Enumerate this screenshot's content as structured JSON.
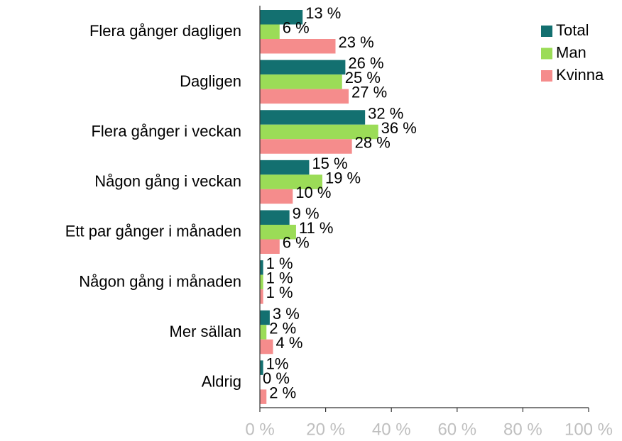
{
  "chart_data": {
    "type": "barh",
    "categories": [
      "Flera gånger dagligen",
      "Dagligen",
      "Flera gånger i veckan",
      "Någon gång i veckan",
      "Ett par gånger i månaden",
      "Någon gång i månaden",
      "Mer sällan",
      "Aldrig"
    ],
    "series": [
      {
        "name": "Total",
        "color": "#137070",
        "values": [
          13,
          26,
          32,
          15,
          9,
          1,
          3,
          1
        ],
        "value_labels": [
          "13 %",
          "26 %",
          "32 %",
          "15 %",
          "9 %",
          "1 %",
          "3 %",
          "1%"
        ]
      },
      {
        "name": "Man",
        "color": "#9bdc57",
        "values": [
          6,
          25,
          36,
          19,
          11,
          1,
          2,
          0
        ],
        "value_labels": [
          "6 %",
          "25 %",
          "36 %",
          "19 %",
          "11 %",
          "1 %",
          "2 %",
          "0 %"
        ]
      },
      {
        "name": "Kvinna",
        "color": "#f58c8c",
        "values": [
          23,
          27,
          28,
          10,
          6,
          1,
          4,
          2
        ],
        "value_labels": [
          "23 %",
          "27 %",
          "28 %",
          "10 %",
          "6 %",
          "1 %",
          "4 %",
          "2 %"
        ]
      }
    ],
    "xlim": [
      0,
      100
    ],
    "xticks": [
      {
        "value": 0,
        "label": "0 %"
      },
      {
        "value": 20,
        "label": "20 %"
      },
      {
        "value": 40,
        "label": "40 %"
      },
      {
        "value": 60,
        "label": "60 %"
      },
      {
        "value": 80,
        "label": "80 %"
      },
      {
        "value": 100,
        "label": "100 %"
      }
    ],
    "legend": "top-right"
  }
}
